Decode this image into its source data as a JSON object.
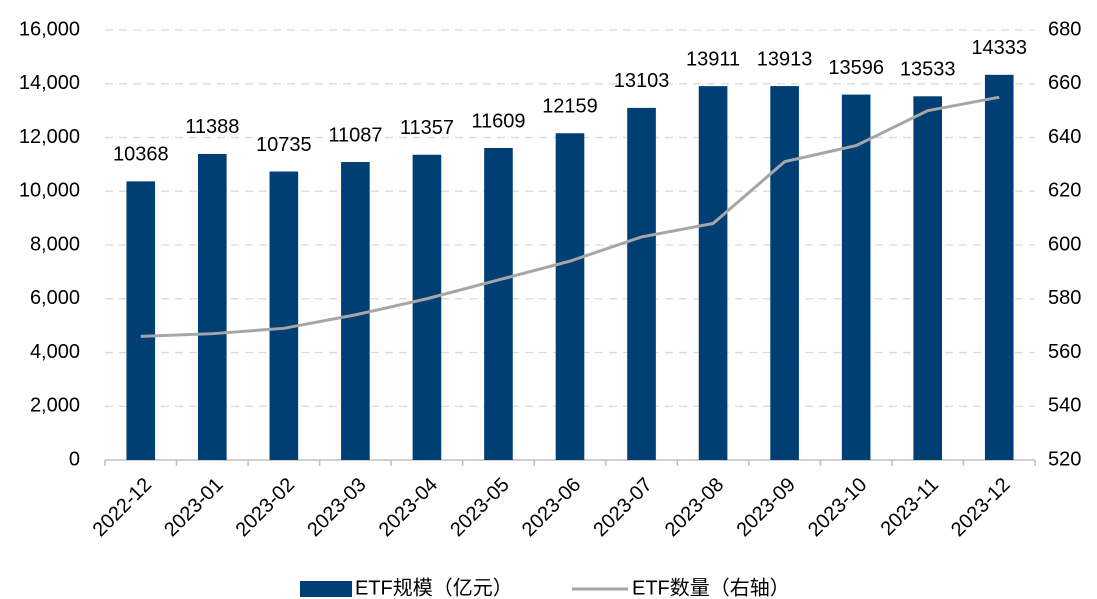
{
  "chart_data": {
    "type": "bar",
    "categories": [
      "2022-12",
      "2023-01",
      "2023-02",
      "2023-03",
      "2023-04",
      "2023-05",
      "2023-06",
      "2023-07",
      "2023-08",
      "2023-09",
      "2023-10",
      "2023-11",
      "2023-12"
    ],
    "series": [
      {
        "name": "ETF规模（亿元）",
        "type": "bar",
        "color": "#003f74",
        "values": [
          10368,
          11388,
          10735,
          11087,
          11357,
          11609,
          12159,
          13103,
          13911,
          13913,
          13596,
          13533,
          14333
        ]
      },
      {
        "name": "ETF数量（右轴）",
        "type": "line",
        "axis": "y2",
        "color": "#a6a6a6",
        "values": [
          566,
          567,
          569,
          574,
          580,
          587,
          594,
          603,
          608,
          631,
          637,
          650,
          655
        ]
      }
    ],
    "ylim": [
      0,
      16000
    ],
    "yticks": [
      0,
      {
        "value": 2000,
        "label": "2,000"
      },
      {
        "value": 4000,
        "label": "4,000"
      },
      {
        "value": 6000,
        "label": "6,000"
      },
      {
        "value": 8000,
        "label": "8,000"
      },
      {
        "value": 10000,
        "label": "10,000"
      },
      {
        "value": 12000,
        "label": "12,000"
      },
      {
        "value": 14000,
        "label": "14,000"
      },
      {
        "value": 16000,
        "label": "16,000"
      }
    ],
    "y2lim": [
      520,
      680
    ],
    "y2ticks": [
      520,
      540,
      560,
      580,
      600,
      620,
      640,
      660,
      680
    ],
    "grid": true,
    "legend": "bottom"
  }
}
